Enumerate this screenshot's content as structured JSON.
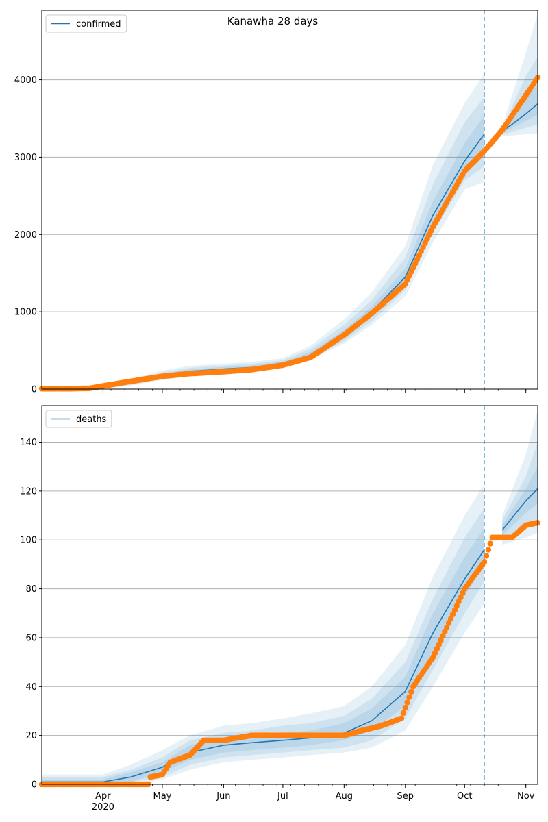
{
  "title": "Kanawha 28 days",
  "colors": {
    "model_line": "#1f77b4",
    "observed_points": "#ff7f0e",
    "band": "#1f77b4",
    "grid": "#b0b0b0",
    "forecast_marker": "#1f77b4"
  },
  "x_axis": {
    "start": "2020-03-01",
    "end": "2020-11-07",
    "forecast_start": "2020-10-11",
    "year_label": "2020",
    "ticks": [
      {
        "date": "2020-04-01",
        "label": "Apr"
      },
      {
        "date": "2020-05-01",
        "label": "May"
      },
      {
        "date": "2020-06-01",
        "label": "Jun"
      },
      {
        "date": "2020-07-01",
        "label": "Jul"
      },
      {
        "date": "2020-08-01",
        "label": "Aug"
      },
      {
        "date": "2020-09-01",
        "label": "Sep"
      },
      {
        "date": "2020-10-01",
        "label": "Oct"
      },
      {
        "date": "2020-11-01",
        "label": "Nov"
      }
    ]
  },
  "chart_data": [
    {
      "type": "line",
      "legend": "confirmed",
      "legend_position": "top-left",
      "grid": "horizontal",
      "ylim": [
        0,
        4900
      ],
      "yticks": [
        0,
        1000,
        2000,
        3000,
        4000
      ],
      "model": {
        "x": [
          "2020-03-01",
          "2020-03-15",
          "2020-04-01",
          "2020-04-15",
          "2020-05-01",
          "2020-05-15",
          "2020-06-01",
          "2020-06-15",
          "2020-07-01",
          "2020-07-15",
          "2020-08-01",
          "2020-08-15",
          "2020-09-01",
          "2020-09-15",
          "2020-10-01",
          "2020-10-11",
          "2020-10-20",
          "2020-11-01",
          "2020-11-07"
        ],
        "y": [
          0,
          0,
          20,
          80,
          170,
          230,
          260,
          280,
          330,
          440,
          700,
          1000,
          1450,
          2250,
          2950,
          3300,
          3330,
          3560,
          3690
        ],
        "bands": [
          {
            "lower": [
              0,
              0,
              10,
              45,
              120,
              180,
              210,
              235,
              290,
              380,
              590,
              830,
              1200,
              1900,
              2580,
              2680,
              3270,
              3295,
              3300
            ],
            "upper": [
              20,
              20,
              40,
              130,
              240,
              300,
              330,
              350,
              400,
              560,
              900,
              1250,
              1850,
              2900,
              3700,
              4080,
              3400,
              4350,
              4850
            ]
          },
          {
            "lower": [
              0,
              0,
              14,
              55,
              135,
              195,
              225,
              250,
              300,
              400,
              620,
              880,
              1280,
              2020,
              2700,
              2880,
              3290,
              3380,
              3420
            ],
            "upper": [
              12,
              12,
              32,
              110,
              215,
              275,
              305,
              325,
              375,
              520,
              830,
              1150,
              1700,
              2650,
              3450,
              3780,
              3370,
              4050,
              4300
            ]
          },
          {
            "lower": [
              0,
              0,
              17,
              65,
              150,
              210,
              240,
              262,
              312,
              418,
              660,
              940,
              1360,
              2130,
              2820,
              3080,
              3310,
              3470,
              3550
            ],
            "upper": [
              6,
              6,
              26,
              95,
              195,
              255,
              285,
              303,
              355,
              480,
              765,
              1070,
              1560,
              2430,
              3180,
              3540,
              3350,
              3760,
              3940
            ]
          }
        ]
      },
      "observed": {
        "x": [
          "2020-03-01",
          "2020-03-15",
          "2020-03-25",
          "2020-04-01",
          "2020-04-15",
          "2020-05-01",
          "2020-05-15",
          "2020-06-01",
          "2020-06-15",
          "2020-07-01",
          "2020-07-15",
          "2020-08-01",
          "2020-08-15",
          "2020-09-01",
          "2020-09-15",
          "2020-10-01",
          "2020-10-11",
          "2020-10-20",
          "2020-11-01",
          "2020-11-07"
        ],
        "y": [
          5,
          5,
          10,
          40,
          100,
          165,
          200,
          225,
          250,
          310,
          410,
          700,
          980,
          1360,
          2100,
          2820,
          3080,
          3350,
          3800,
          4030
        ]
      }
    },
    {
      "type": "line",
      "legend": "deaths",
      "legend_position": "top-left",
      "grid": "horizontal",
      "ylim": [
        0,
        155
      ],
      "yticks": [
        0,
        20,
        40,
        60,
        80,
        100,
        120,
        140
      ],
      "model": {
        "x": [
          "2020-03-01",
          "2020-03-15",
          "2020-04-01",
          "2020-04-15",
          "2020-05-01",
          "2020-05-15",
          "2020-06-01",
          "2020-06-15",
          "2020-07-01",
          "2020-07-15",
          "2020-08-01",
          "2020-08-15",
          "2020-09-01",
          "2020-09-15",
          "2020-10-01",
          "2020-10-11",
          "2020-10-20",
          "2020-11-01",
          "2020-11-07"
        ],
        "y": [
          1,
          1,
          1,
          3,
          7,
          13,
          16,
          17,
          18,
          19,
          21,
          26,
          38,
          62,
          84,
          96,
          104,
          116,
          121
        ],
        "bands": [
          {
            "lower": [
              0,
              0,
              0,
              0,
              2,
              6,
              9,
              10,
              11,
              12,
              13,
              15,
              22,
              40,
              62,
              74,
              98,
              101,
              103
            ],
            "upper": [
              4,
              4,
              4,
              8,
              14,
              20,
              24,
              25,
              27,
              29,
              32,
              40,
              57,
              85,
              110,
              123,
              110,
              135,
              153
            ]
          },
          {
            "lower": [
              0,
              0,
              0,
              1,
              3,
              8,
              11,
              12,
              13,
              14,
              15,
              18,
              27,
              47,
              70,
              83,
              100,
              106,
              108
            ],
            "upper": [
              3,
              3,
              3,
              6,
              11,
              18,
              21,
              22,
              24,
              25,
              28,
              35,
              50,
              76,
              101,
              113,
              108,
              126,
              140
            ]
          },
          {
            "lower": [
              0,
              0,
              0,
              1,
              5,
              10,
              13,
              14,
              15,
              16,
              18,
              22,
              32,
              54,
              77,
              90,
              102,
              111,
              115
            ],
            "upper": [
              2,
              2,
              2,
              5,
              9,
              16,
              19,
              20,
              21,
              22,
              25,
              31,
              44,
              70,
              93,
              105,
              106,
              121,
              130
            ]
          }
        ]
      },
      "observed": {
        "x": [
          "2020-03-01",
          "2020-04-24",
          "2020-04-25",
          "2020-05-01",
          "2020-05-05",
          "2020-05-15",
          "2020-05-22",
          "2020-06-01",
          "2020-06-08",
          "2020-06-15",
          "2020-07-01",
          "2020-07-15",
          "2020-08-01",
          "2020-08-10",
          "2020-08-20",
          "2020-08-30",
          "2020-09-05",
          "2020-09-15",
          "2020-10-01",
          "2020-10-11",
          "2020-10-15",
          "2020-10-25",
          "2020-11-01",
          "2020-11-07"
        ],
        "y": [
          0,
          0,
          3,
          4,
          9,
          12,
          18,
          18,
          19,
          20,
          20,
          20,
          20,
          22,
          24,
          27,
          40,
          52,
          80,
          91,
          101,
          101,
          106,
          107
        ]
      }
    }
  ]
}
